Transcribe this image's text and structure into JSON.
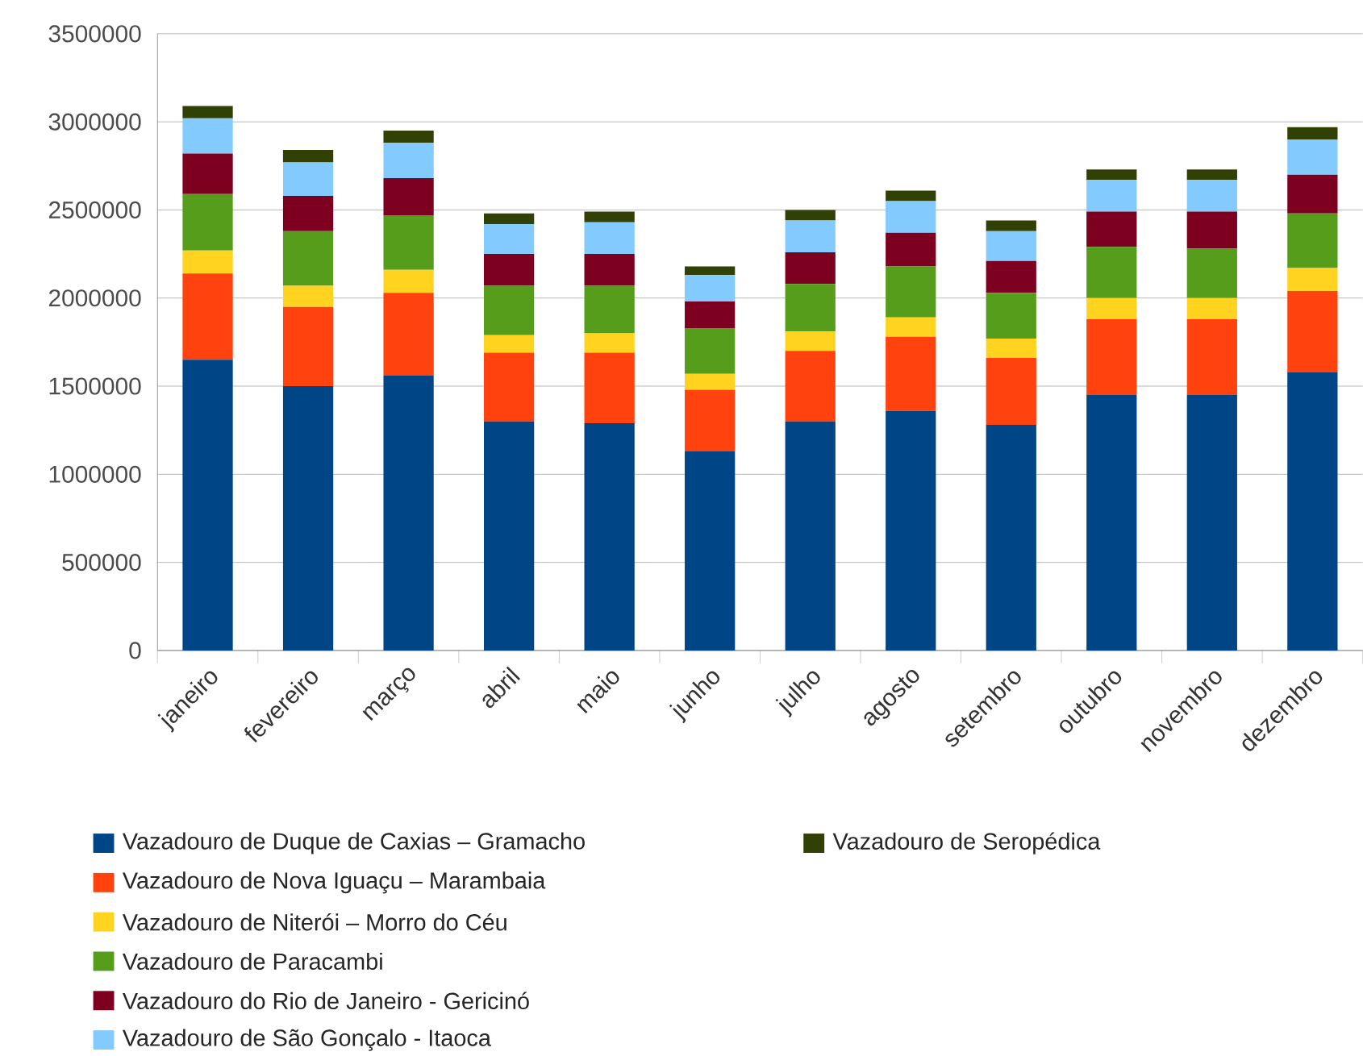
{
  "chart_data": {
    "type": "bar",
    "stacked": true,
    "categories": [
      "janeiro",
      "fevereiro",
      "março",
      "abril",
      "maio",
      "junho",
      "julho",
      "agosto",
      "setembro",
      "outubro",
      "novembro",
      "dezembro"
    ],
    "ylim": [
      0,
      3500000
    ],
    "yticks": [
      0,
      500000,
      1000000,
      1500000,
      2000000,
      2500000,
      3000000,
      3500000
    ],
    "grid": "y",
    "legend": "bottom",
    "series": [
      {
        "name": "Vazadouro de Duque de Caxias – Gramacho",
        "color": "#004586",
        "values": [
          1650000,
          1500000,
          1560000,
          1300000,
          1290000,
          1130000,
          1300000,
          1360000,
          1280000,
          1450000,
          1450000,
          1580000
        ]
      },
      {
        "name": "Vazadouro de Nova Iguaçu – Marambaia",
        "color": "#ff420e",
        "values": [
          490000,
          450000,
          470000,
          390000,
          400000,
          350000,
          400000,
          420000,
          380000,
          430000,
          430000,
          460000
        ]
      },
      {
        "name": "Vazadouro de Niterói – Morro do Céu",
        "color": "#ffd320",
        "values": [
          130000,
          120000,
          130000,
          100000,
          110000,
          90000,
          110000,
          110000,
          110000,
          120000,
          120000,
          130000
        ]
      },
      {
        "name": "Vazadouro de Paracambi",
        "color": "#579d1c",
        "values": [
          320000,
          310000,
          310000,
          280000,
          270000,
          260000,
          270000,
          290000,
          260000,
          290000,
          280000,
          310000
        ]
      },
      {
        "name": "Vazadouro do Rio de Janeiro - Gericinó",
        "color": "#7e0021",
        "values": [
          230000,
          200000,
          210000,
          180000,
          180000,
          150000,
          180000,
          190000,
          180000,
          200000,
          210000,
          220000
        ]
      },
      {
        "name": "Vazadouro de São Gonçalo - Itaoca",
        "color": "#83caff",
        "values": [
          200000,
          190000,
          200000,
          170000,
          180000,
          150000,
          180000,
          180000,
          170000,
          180000,
          180000,
          200000
        ]
      },
      {
        "name": "Vazadouro de Seropédica",
        "color": "#314004",
        "values": [
          70000,
          70000,
          70000,
          60000,
          60000,
          50000,
          60000,
          60000,
          60000,
          60000,
          60000,
          70000
        ]
      }
    ]
  }
}
